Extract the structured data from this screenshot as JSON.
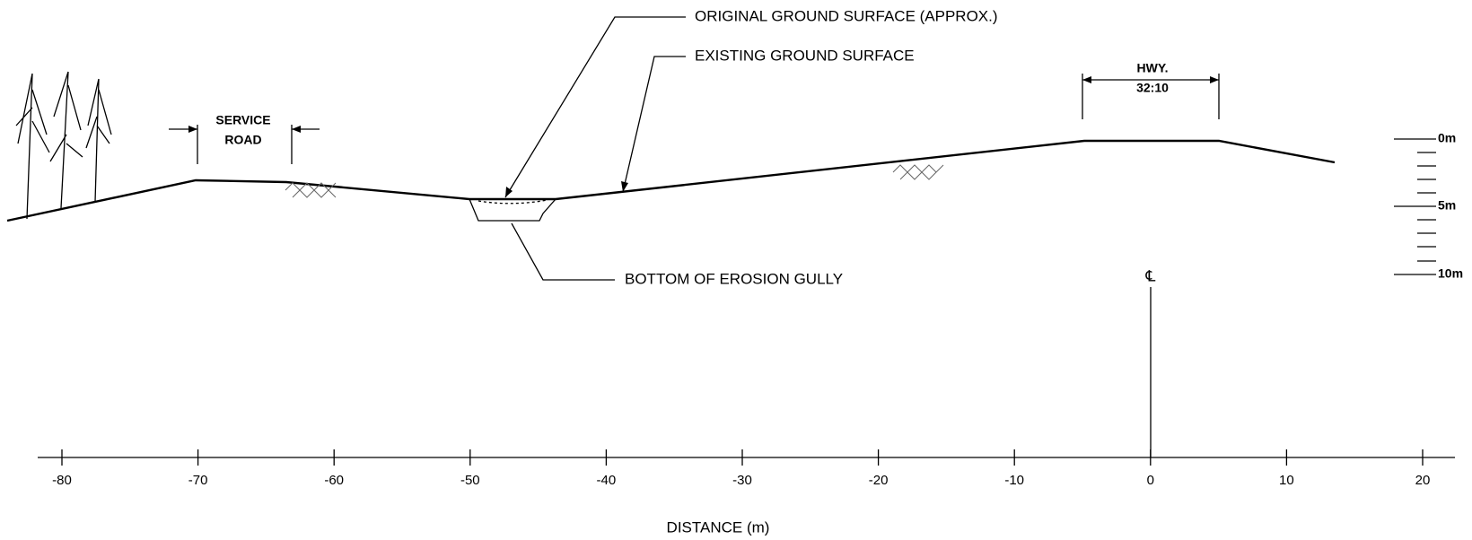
{
  "labels": {
    "original": "ORIGINAL GROUND SURFACE (APPROX.)",
    "existing": "EXISTING GROUND SURFACE",
    "gully": "BOTTOM OF EROSION GULLY"
  },
  "service_road": [
    "SERVICE",
    "ROAD"
  ],
  "highway": [
    "HWY.",
    "32:10"
  ],
  "centerline": "℄",
  "scale_bar": [
    "0m",
    "5m",
    "10m"
  ],
  "axis": {
    "title": "DISTANCE (m)",
    "ticks": [
      -80,
      -70,
      -60,
      -50,
      -40,
      -30,
      -20,
      -10,
      0,
      10,
      20
    ]
  }
}
